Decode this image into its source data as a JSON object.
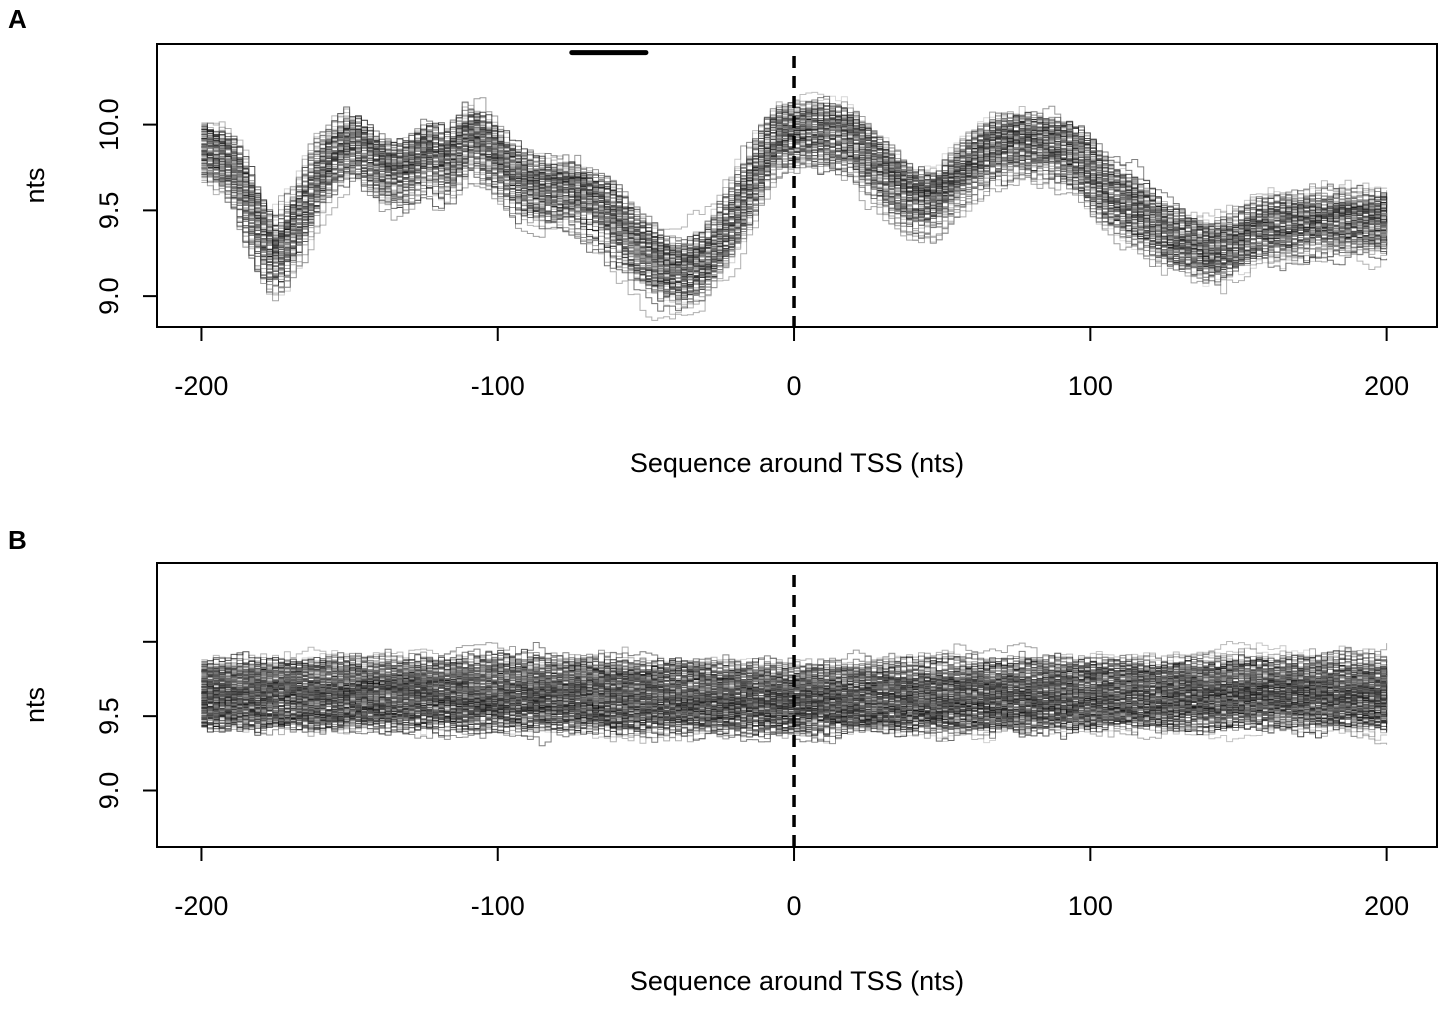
{
  "chart_data": [
    {
      "type": "line",
      "panel_label": "A",
      "xlabel": "Sequence around TSS (nts)",
      "ylabel": "nts",
      "xlim": [
        -215,
        217
      ],
      "ylim": [
        8.82,
        10.47
      ],
      "xticks": [
        -200,
        -100,
        0,
        100,
        200
      ],
      "xtick_labels": [
        "-200",
        "-100",
        "0",
        "100",
        "200"
      ],
      "yticks": [
        9.0,
        9.5,
        10.0
      ],
      "ytick_labels": [
        "9.0",
        "9.5",
        "10.0"
      ],
      "grid": false,
      "legend": "none",
      "reference_line": {
        "x": 0,
        "style": "dashed"
      },
      "segment_bar": {
        "x0": -75,
        "x1": -50,
        "y": 10.42
      },
      "n_series": 120,
      "mean_profile": {
        "x": [
          -200,
          -190,
          -183,
          -176,
          -168,
          -160,
          -150,
          -140,
          -133,
          -125,
          -118,
          -110,
          -100,
          -92,
          -85,
          -75,
          -65,
          -55,
          -45,
          -38,
          -30,
          -22,
          -15,
          -8,
          0,
          10,
          20,
          30,
          40,
          48,
          55,
          65,
          75,
          85,
          95,
          105,
          115,
          125,
          133,
          140,
          148,
          155,
          165,
          175,
          185,
          200
        ],
        "y": [
          9.85,
          9.75,
          9.45,
          9.2,
          9.45,
          9.75,
          9.9,
          9.75,
          9.7,
          9.85,
          9.75,
          9.95,
          9.78,
          9.65,
          9.6,
          9.6,
          9.5,
          9.3,
          9.15,
          9.12,
          9.2,
          9.4,
          9.65,
          9.9,
          9.95,
          9.95,
          9.9,
          9.7,
          9.55,
          9.55,
          9.7,
          9.85,
          9.9,
          9.88,
          9.8,
          9.6,
          9.5,
          9.35,
          9.3,
          9.25,
          9.3,
          9.38,
          9.4,
          9.42,
          9.42,
          9.42
        ]
      },
      "series_spread": 0.14
    },
    {
      "type": "line",
      "panel_label": "B",
      "xlabel": "Sequence around TSS (nts)",
      "ylabel": "nts",
      "xlim": [
        -215,
        217
      ],
      "ylim": [
        8.62,
        10.53
      ],
      "xticks": [
        -200,
        -100,
        0,
        100,
        200
      ],
      "xtick_labels": [
        "-200",
        "-100",
        "0",
        "100",
        "200"
      ],
      "yticks": [
        9.0,
        9.5,
        10.0
      ],
      "ytick_labels": [
        "9.0",
        "9.5",
        ""
      ],
      "grid": false,
      "legend": "none",
      "reference_line": {
        "x": 0,
        "style": "dashed"
      },
      "n_series": 200,
      "mean_profile": {
        "x": [
          -200,
          -100,
          0,
          100,
          200
        ],
        "y": [
          9.65,
          9.65,
          9.62,
          9.65,
          9.65
        ]
      },
      "series_spread": 0.2
    }
  ]
}
